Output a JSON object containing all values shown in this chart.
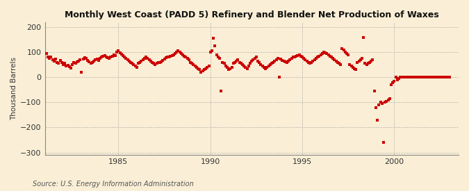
{
  "title": "Monthly West Coast (PADD 5) Refinery and Blender Net Production of Waxes",
  "ylabel": "Thousand Barrels",
  "source": "Source: U.S. Energy Information Administration",
  "bg_color": "#faefd6",
  "dot_color": "#cc0000",
  "grid_color": "#999999",
  "xlim": [
    1981.0,
    2003.5
  ],
  "ylim": [
    -310,
    220
  ],
  "yticks": [
    -300,
    -200,
    -100,
    0,
    100,
    200
  ],
  "xticks": [
    1985,
    1990,
    1995,
    2000
  ],
  "data": [
    [
      1981.083,
      95
    ],
    [
      1981.167,
      80
    ],
    [
      1981.25,
      75
    ],
    [
      1981.333,
      80
    ],
    [
      1981.417,
      70
    ],
    [
      1981.5,
      65
    ],
    [
      1981.583,
      72
    ],
    [
      1981.667,
      60
    ],
    [
      1981.75,
      55
    ],
    [
      1981.833,
      68
    ],
    [
      1981.917,
      58
    ],
    [
      1982.0,
      50
    ],
    [
      1982.083,
      55
    ],
    [
      1982.167,
      45
    ],
    [
      1982.25,
      48
    ],
    [
      1982.333,
      42
    ],
    [
      1982.417,
      38
    ],
    [
      1982.5,
      52
    ],
    [
      1982.583,
      60
    ],
    [
      1982.667,
      55
    ],
    [
      1982.75,
      62
    ],
    [
      1982.833,
      65
    ],
    [
      1982.917,
      70
    ],
    [
      1983.0,
      20
    ],
    [
      1983.083,
      72
    ],
    [
      1983.167,
      78
    ],
    [
      1983.25,
      75
    ],
    [
      1983.333,
      68
    ],
    [
      1983.417,
      62
    ],
    [
      1983.5,
      55
    ],
    [
      1983.583,
      60
    ],
    [
      1983.667,
      65
    ],
    [
      1983.75,
      70
    ],
    [
      1983.833,
      72
    ],
    [
      1983.917,
      68
    ],
    [
      1984.0,
      75
    ],
    [
      1984.083,
      80
    ],
    [
      1984.167,
      85
    ],
    [
      1984.25,
      88
    ],
    [
      1984.333,
      82
    ],
    [
      1984.417,
      78
    ],
    [
      1984.5,
      75
    ],
    [
      1984.583,
      80
    ],
    [
      1984.667,
      85
    ],
    [
      1984.75,
      90
    ],
    [
      1984.833,
      88
    ],
    [
      1984.917,
      100
    ],
    [
      1985.0,
      105
    ],
    [
      1985.083,
      98
    ],
    [
      1985.167,
      92
    ],
    [
      1985.25,
      88
    ],
    [
      1985.333,
      82
    ],
    [
      1985.417,
      75
    ],
    [
      1985.5,
      70
    ],
    [
      1985.583,
      65
    ],
    [
      1985.667,
      60
    ],
    [
      1985.75,
      55
    ],
    [
      1985.833,
      50
    ],
    [
      1985.917,
      45
    ],
    [
      1986.0,
      40
    ],
    [
      1986.083,
      55
    ],
    [
      1986.167,
      60
    ],
    [
      1986.25,
      65
    ],
    [
      1986.333,
      70
    ],
    [
      1986.417,
      75
    ],
    [
      1986.5,
      80
    ],
    [
      1986.583,
      75
    ],
    [
      1986.667,
      70
    ],
    [
      1986.75,
      65
    ],
    [
      1986.833,
      60
    ],
    [
      1986.917,
      55
    ],
    [
      1987.0,
      50
    ],
    [
      1987.083,
      55
    ],
    [
      1987.167,
      60
    ],
    [
      1987.25,
      58
    ],
    [
      1987.333,
      62
    ],
    [
      1987.417,
      68
    ],
    [
      1987.5,
      72
    ],
    [
      1987.583,
      78
    ],
    [
      1987.667,
      82
    ],
    [
      1987.75,
      80
    ],
    [
      1987.833,
      85
    ],
    [
      1987.917,
      88
    ],
    [
      1988.0,
      90
    ],
    [
      1988.083,
      95
    ],
    [
      1988.167,
      100
    ],
    [
      1988.25,
      105
    ],
    [
      1988.333,
      100
    ],
    [
      1988.417,
      95
    ],
    [
      1988.5,
      90
    ],
    [
      1988.583,
      85
    ],
    [
      1988.667,
      80
    ],
    [
      1988.75,
      75
    ],
    [
      1988.833,
      70
    ],
    [
      1988.917,
      60
    ],
    [
      1989.0,
      55
    ],
    [
      1989.083,
      50
    ],
    [
      1989.167,
      45
    ],
    [
      1989.25,
      40
    ],
    [
      1989.333,
      35
    ],
    [
      1989.417,
      30
    ],
    [
      1989.5,
      20
    ],
    [
      1989.583,
      25
    ],
    [
      1989.667,
      30
    ],
    [
      1989.75,
      35
    ],
    [
      1989.833,
      40
    ],
    [
      1989.917,
      45
    ],
    [
      1990.0,
      100
    ],
    [
      1990.083,
      105
    ],
    [
      1990.167,
      155
    ],
    [
      1990.25,
      125
    ],
    [
      1990.333,
      90
    ],
    [
      1990.417,
      80
    ],
    [
      1990.5,
      75
    ],
    [
      1990.583,
      -55
    ],
    [
      1990.667,
      60
    ],
    [
      1990.75,
      55
    ],
    [
      1990.833,
      45
    ],
    [
      1990.917,
      40
    ],
    [
      1991.0,
      30
    ],
    [
      1991.083,
      35
    ],
    [
      1991.167,
      40
    ],
    [
      1991.25,
      55
    ],
    [
      1991.333,
      60
    ],
    [
      1991.417,
      65
    ],
    [
      1991.5,
      70
    ],
    [
      1991.583,
      60
    ],
    [
      1991.667,
      55
    ],
    [
      1991.75,
      50
    ],
    [
      1991.833,
      45
    ],
    [
      1991.917,
      40
    ],
    [
      1992.0,
      35
    ],
    [
      1992.083,
      45
    ],
    [
      1992.167,
      55
    ],
    [
      1992.25,
      65
    ],
    [
      1992.333,
      70
    ],
    [
      1992.417,
      75
    ],
    [
      1992.5,
      80
    ],
    [
      1992.583,
      65
    ],
    [
      1992.667,
      60
    ],
    [
      1992.75,
      50
    ],
    [
      1992.833,
      45
    ],
    [
      1992.917,
      40
    ],
    [
      1993.0,
      35
    ],
    [
      1993.083,
      40
    ],
    [
      1993.167,
      45
    ],
    [
      1993.25,
      50
    ],
    [
      1993.333,
      55
    ],
    [
      1993.417,
      60
    ],
    [
      1993.5,
      65
    ],
    [
      1993.583,
      70
    ],
    [
      1993.667,
      75
    ],
    [
      1993.75,
      0
    ],
    [
      1993.833,
      72
    ],
    [
      1993.917,
      68
    ],
    [
      1994.0,
      65
    ],
    [
      1994.083,
      62
    ],
    [
      1994.167,
      60
    ],
    [
      1994.25,
      65
    ],
    [
      1994.333,
      70
    ],
    [
      1994.417,
      75
    ],
    [
      1994.5,
      80
    ],
    [
      1994.583,
      82
    ],
    [
      1994.667,
      85
    ],
    [
      1994.75,
      88
    ],
    [
      1994.833,
      90
    ],
    [
      1994.917,
      85
    ],
    [
      1995.0,
      80
    ],
    [
      1995.083,
      75
    ],
    [
      1995.167,
      70
    ],
    [
      1995.25,
      65
    ],
    [
      1995.333,
      60
    ],
    [
      1995.417,
      55
    ],
    [
      1995.5,
      60
    ],
    [
      1995.583,
      65
    ],
    [
      1995.667,
      70
    ],
    [
      1995.75,
      75
    ],
    [
      1995.833,
      80
    ],
    [
      1995.917,
      85
    ],
    [
      1996.0,
      90
    ],
    [
      1996.083,
      95
    ],
    [
      1996.167,
      100
    ],
    [
      1996.25,
      98
    ],
    [
      1996.333,
      95
    ],
    [
      1996.417,
      90
    ],
    [
      1996.5,
      85
    ],
    [
      1996.583,
      80
    ],
    [
      1996.667,
      75
    ],
    [
      1996.75,
      70
    ],
    [
      1996.833,
      65
    ],
    [
      1996.917,
      60
    ],
    [
      1997.0,
      55
    ],
    [
      1997.083,
      50
    ],
    [
      1997.167,
      115
    ],
    [
      1997.25,
      110
    ],
    [
      1997.333,
      100
    ],
    [
      1997.417,
      95
    ],
    [
      1997.5,
      90
    ],
    [
      1997.583,
      50
    ],
    [
      1997.667,
      45
    ],
    [
      1997.75,
      40
    ],
    [
      1997.833,
      35
    ],
    [
      1997.917,
      30
    ],
    [
      1998.0,
      60
    ],
    [
      1998.083,
      65
    ],
    [
      1998.167,
      70
    ],
    [
      1998.25,
      75
    ],
    [
      1998.333,
      160
    ],
    [
      1998.417,
      55
    ],
    [
      1998.5,
      50
    ],
    [
      1998.583,
      55
    ],
    [
      1998.667,
      60
    ],
    [
      1998.75,
      65
    ],
    [
      1998.833,
      70
    ],
    [
      1998.917,
      -55
    ],
    [
      1999.0,
      -120
    ],
    [
      1999.083,
      -170
    ],
    [
      1999.167,
      -110
    ],
    [
      1999.25,
      -100
    ],
    [
      1999.333,
      -105
    ],
    [
      1999.417,
      -260
    ],
    [
      1999.5,
      -100
    ],
    [
      1999.583,
      -95
    ],
    [
      1999.667,
      -90
    ],
    [
      1999.75,
      -85
    ],
    [
      1999.833,
      -30
    ],
    [
      1999.917,
      -20
    ],
    [
      2000.0,
      -15
    ],
    [
      2000.083,
      0
    ],
    [
      2000.167,
      -10
    ],
    [
      2000.25,
      -5
    ],
    [
      2000.333,
      0
    ],
    [
      2000.417,
      2
    ],
    [
      2000.5,
      1
    ],
    [
      2000.583,
      0
    ],
    [
      2000.667,
      1
    ],
    [
      2000.75,
      0
    ],
    [
      2000.833,
      1
    ],
    [
      2000.917,
      0
    ],
    [
      2001.0,
      2
    ],
    [
      2001.083,
      0
    ],
    [
      2001.167,
      1
    ],
    [
      2001.25,
      0
    ],
    [
      2001.333,
      0
    ],
    [
      2001.417,
      1
    ],
    [
      2001.5,
      0
    ],
    [
      2001.583,
      0
    ],
    [
      2001.667,
      0
    ],
    [
      2001.75,
      1
    ],
    [
      2001.833,
      0
    ],
    [
      2001.917,
      0
    ],
    [
      2002.0,
      0
    ],
    [
      2002.083,
      0
    ],
    [
      2002.167,
      0
    ],
    [
      2002.25,
      0
    ],
    [
      2002.333,
      0
    ],
    [
      2002.417,
      0
    ],
    [
      2002.5,
      0
    ],
    [
      2002.583,
      0
    ],
    [
      2002.667,
      0
    ],
    [
      2002.75,
      0
    ],
    [
      2002.833,
      0
    ],
    [
      2002.917,
      0
    ],
    [
      2003.0,
      0
    ]
  ]
}
